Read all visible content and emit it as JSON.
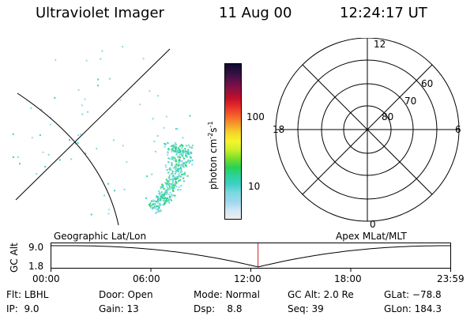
{
  "header": {
    "instrument": "Ultraviolet Imager",
    "date": "11 Aug 00",
    "time": "12:24:17 UT"
  },
  "colorbar": {
    "axis_label": "photon cm",
    "exp1": "-2",
    "mid": "s",
    "exp2": "-1",
    "tick_upper": "100",
    "tick_lower": "10",
    "colors": [
      "#eeeeee",
      "#cfe6f5",
      "#9fd6ee",
      "#7dd9e0",
      "#3fd0c6",
      "#2ad39a",
      "#2ad055",
      "#78df2a",
      "#c8ef2a",
      "#f5f52a",
      "#f5d42a",
      "#f59a2a",
      "#f5602a",
      "#e8302a",
      "#c0102a",
      "#901040",
      "#60104a",
      "#301040",
      "#100a30"
    ]
  },
  "polar_plot": {
    "mlt_labels": {
      "top": "12",
      "left": "18",
      "right": "6",
      "bottom": "0"
    },
    "lat_labels": [
      "60",
      "70",
      "80"
    ]
  },
  "timeline": {
    "y_title": "GC Alt",
    "y_top": "9.0",
    "y_bottom": "1.8",
    "left_label": "Geographic Lat/Lon",
    "right_label": "Apex MLat/MLT",
    "ticks": [
      "00:00",
      "06:00",
      "12:00",
      "18:00",
      "23:59"
    ],
    "current_time_fraction": 0.517
  },
  "status": {
    "flt_label": "Flt:",
    "flt_value": "LBHL",
    "ip_label": "IP:",
    "ip_value": "9.0",
    "door_label": "Door:",
    "door_value": "Open",
    "gain_label": "Gain:",
    "gain_value": "13",
    "mode_label": "Mode:",
    "mode_value": "Normal",
    "dsp_label": "Dsp:",
    "dsp_value": "8.8",
    "gcalt_label": "GC Alt:",
    "gcalt_value": "2.0 Re",
    "seq_label": "Seq:",
    "seq_value": "39",
    "glat_label": "GLat:",
    "glat_value": "−78.8",
    "glon_label": "GLon:",
    "glon_value": "184.3"
  }
}
